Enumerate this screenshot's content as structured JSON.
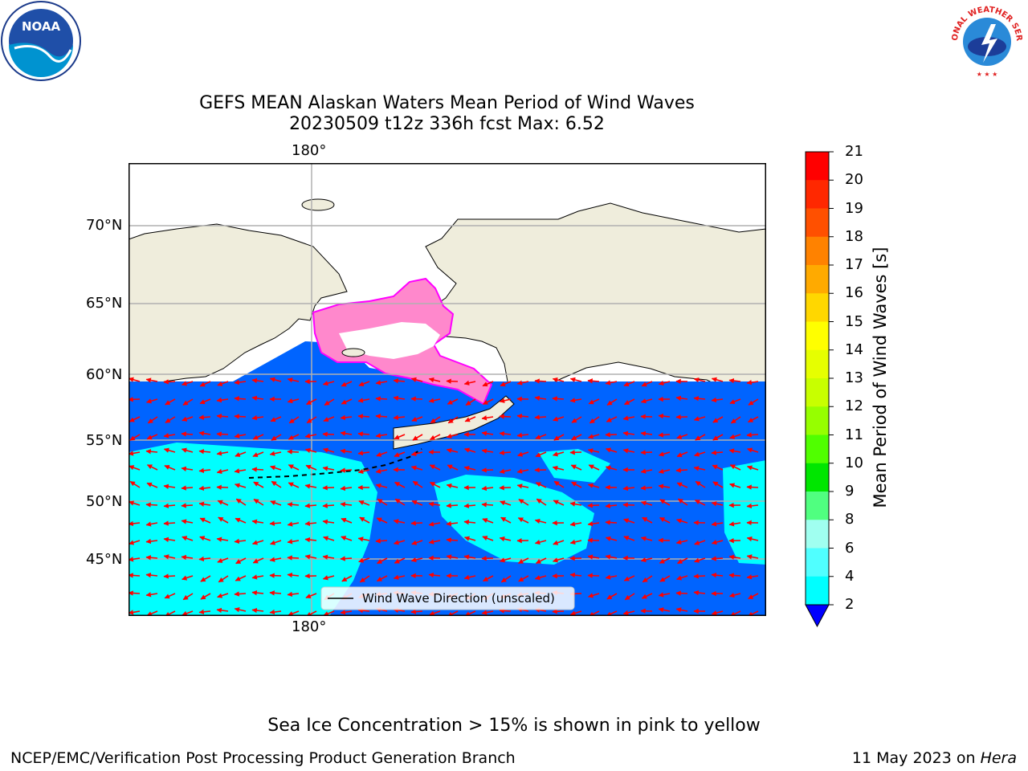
{
  "title": {
    "line1": "GEFS MEAN Alaskan Waters Mean Period of Wind Waves",
    "line2": "20230509 t12z 336h fcst   Max: 6.52"
  },
  "map": {
    "lon_label_top": "180°",
    "lon_label_bottom": "180°",
    "lat_labels": [
      "70°N",
      "65°N",
      "60°N",
      "55°N",
      "50°N",
      "45°N"
    ],
    "legend_label": "Wind Wave Direction (unscaled)",
    "colors": {
      "land": "#efeddc",
      "deep": "#0064ff",
      "shallow": "#00ffff",
      "arrow": "#ff0000",
      "ice": "#ff88cc"
    }
  },
  "colorbar": {
    "label": "Mean Period of Wind Waves [s]",
    "ticks": [
      "21",
      "20",
      "19",
      "18",
      "17",
      "16",
      "15",
      "14",
      "13",
      "12",
      "11",
      "10",
      "9",
      "8",
      "6",
      "4",
      "2"
    ],
    "colors": [
      "#ff0000",
      "#ff2800",
      "#ff5000",
      "#ff8200",
      "#ffaa00",
      "#ffd700",
      "#ffff00",
      "#e6ff00",
      "#c8ff00",
      "#96ff00",
      "#50ff00",
      "#00e600",
      "#50ff80",
      "#a0fff0",
      "#50ffff",
      "#00ffff",
      "#0078ff"
    ],
    "under_color": "#0000ff"
  },
  "logos": {
    "noaa": "NOAA",
    "nws": "NATIONAL WEATHER SERVICE"
  },
  "footer": {
    "subtitle": "Sea Ice Concentration > 15% is shown in pink to yellow",
    "left": "NCEP/EMC/Verification Post Processing Product Generation Branch",
    "right_prefix": "11 May 2023 on ",
    "right_host": "Hera"
  }
}
